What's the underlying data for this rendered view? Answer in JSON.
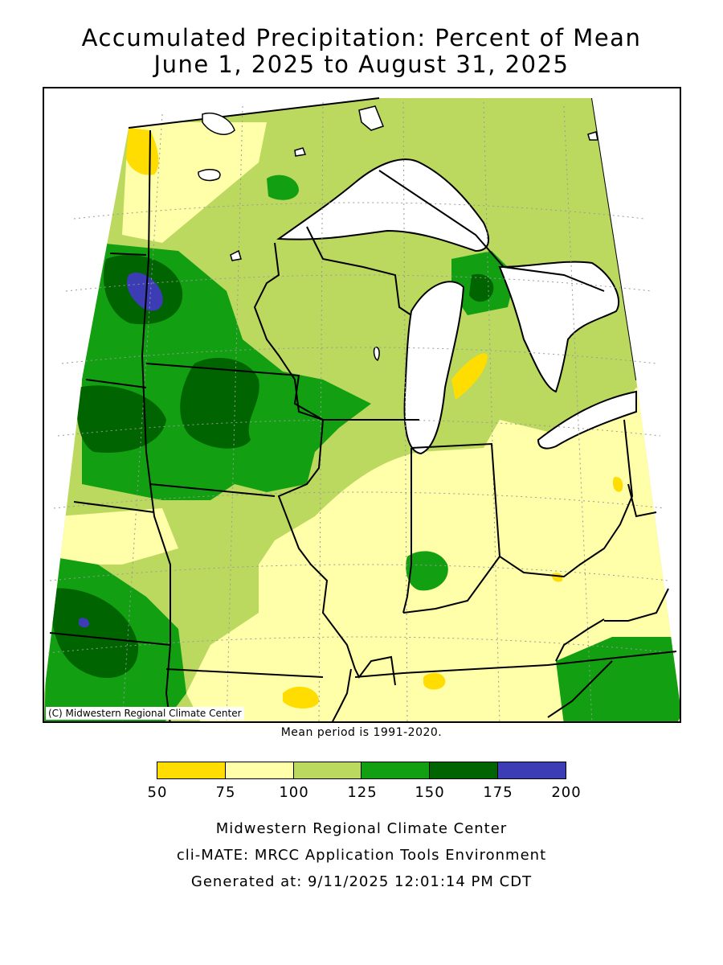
{
  "title": {
    "line1": "Accumulated Precipitation: Percent of Mean",
    "line2": "June 1, 2025 to August 31, 2025"
  },
  "map": {
    "copyright": "(C) Midwestern Regional Climate Center",
    "regions": [
      {
        "id": "base-100-125",
        "class": "100-125"
      },
      {
        "id": "belt-nd-mn-wi",
        "class": "125-150"
      },
      {
        "id": "core-mn-ia",
        "class": "150-175"
      },
      {
        "id": "spot-nd",
        "class": "175-200"
      },
      {
        "id": "northwest-ne",
        "class": "125-150"
      },
      {
        "id": "core-ne",
        "class": "150-175"
      },
      {
        "id": "spot-ne",
        "class": "175-200"
      },
      {
        "id": "upper-mi",
        "class": "125-150"
      },
      {
        "id": "spot-upper-mi",
        "class": "150-175"
      },
      {
        "id": "indiana-spot",
        "class": "125-150"
      },
      {
        "id": "kentucky-east",
        "class": "125-150"
      },
      {
        "id": "dry-southern",
        "class": "75-100"
      },
      {
        "id": "dry-ohio",
        "class": "75-100"
      },
      {
        "id": "dry-north-mn",
        "class": "75-100"
      },
      {
        "id": "very-dry-spots",
        "class": "50-75"
      }
    ],
    "colors": {
      "water": "#ffffff",
      "boundary": "#000000",
      "gridline": "#9a9a9a"
    }
  },
  "mean_note": "Mean period is 1991-2020.",
  "legend": {
    "bins": [
      {
        "range": "50-75",
        "color": "#ffdd00"
      },
      {
        "range": "75-100",
        "color": "#ffffaa"
      },
      {
        "range": "100-125",
        "color": "#bcd95f"
      },
      {
        "range": "125-150",
        "color": "#12a012"
      },
      {
        "range": "150-175",
        "color": "#006400"
      },
      {
        "range": "175-200",
        "color": "#3c3cb4"
      }
    ],
    "ticks": [
      "50",
      "75",
      "100",
      "125",
      "150",
      "175",
      "200"
    ]
  },
  "footer": {
    "line1": "Midwestern Regional Climate Center",
    "line2": "cli-MATE: MRCC Application Tools Environment",
    "line3": "Generated at: 9/11/2025 12:01:14 PM CDT"
  }
}
